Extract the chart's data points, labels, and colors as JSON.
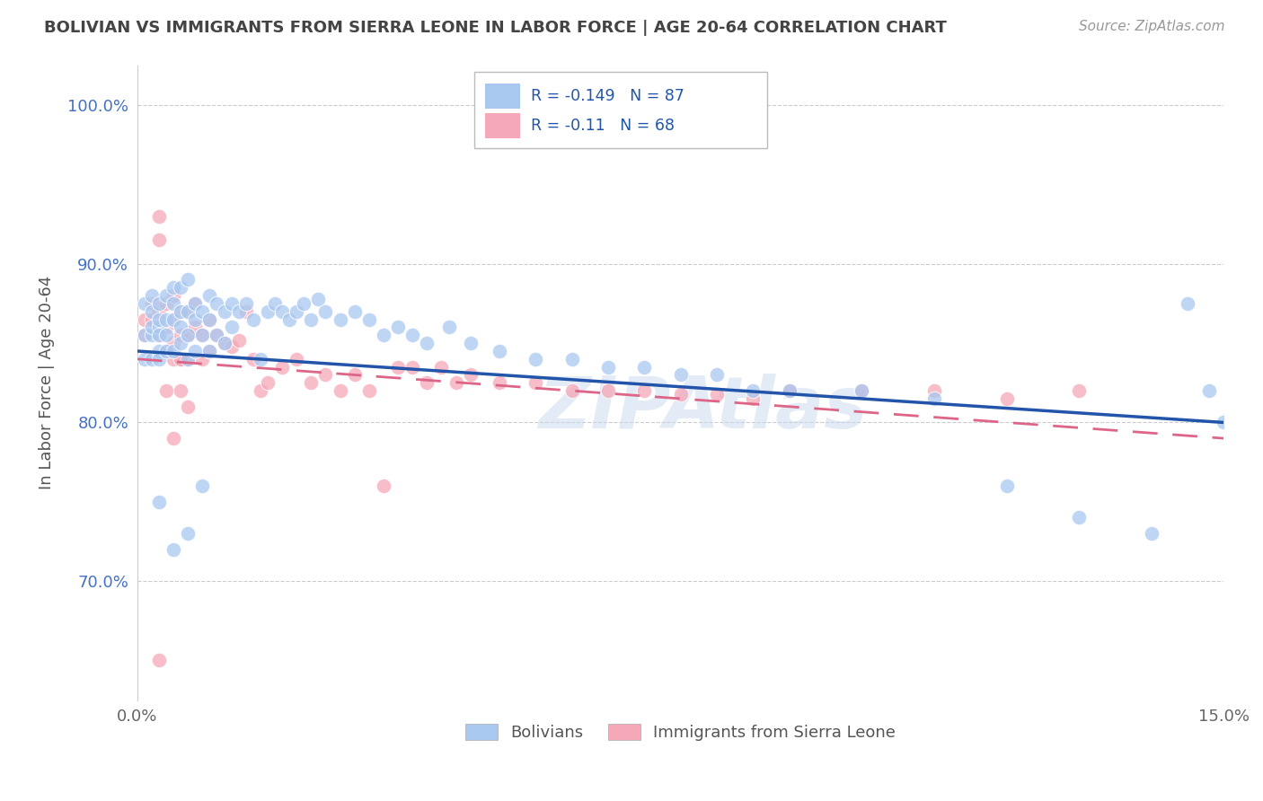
{
  "title": "BOLIVIAN VS IMMIGRANTS FROM SIERRA LEONE IN LABOR FORCE | AGE 20-64 CORRELATION CHART",
  "source": "Source: ZipAtlas.com",
  "ylabel": "In Labor Force | Age 20-64",
  "xlim": [
    0.0,
    0.15
  ],
  "ylim": [
    0.625,
    1.025
  ],
  "yticks": [
    0.7,
    0.8,
    0.9,
    1.0
  ],
  "yticklabels": [
    "70.0%",
    "80.0%",
    "90.0%",
    "100.0%"
  ],
  "xtick_positions": [
    0.0,
    0.05,
    0.1,
    0.15
  ],
  "xtick_labels": [
    "0.0%",
    "",
    "",
    "15.0%"
  ],
  "blue_color": "#a8c8f0",
  "pink_color": "#f5a8b8",
  "blue_line_color": "#2255aa",
  "pink_line_color": "#dd6688",
  "R_blue": -0.149,
  "N_blue": 87,
  "R_pink": -0.11,
  "N_pink": 68,
  "legend_blue": "Bolivians",
  "legend_pink": "Immigrants from Sierra Leone",
  "watermark": "ZIPAtlas",
  "blue_trend_x0": 0.0,
  "blue_trend_y0": 0.845,
  "blue_trend_x1": 0.15,
  "blue_trend_y1": 0.8,
  "pink_trend_x0": 0.0,
  "pink_trend_y0": 0.84,
  "pink_trend_x1": 0.15,
  "pink_trend_y1": 0.79,
  "blue_x": [
    0.001,
    0.001,
    0.001,
    0.002,
    0.002,
    0.002,
    0.002,
    0.002,
    0.003,
    0.003,
    0.003,
    0.003,
    0.003,
    0.003,
    0.004,
    0.004,
    0.004,
    0.004,
    0.005,
    0.005,
    0.005,
    0.005,
    0.006,
    0.006,
    0.006,
    0.006,
    0.007,
    0.007,
    0.007,
    0.007,
    0.008,
    0.008,
    0.008,
    0.009,
    0.009,
    0.01,
    0.01,
    0.01,
    0.011,
    0.011,
    0.012,
    0.012,
    0.013,
    0.013,
    0.014,
    0.015,
    0.016,
    0.017,
    0.018,
    0.019,
    0.02,
    0.021,
    0.022,
    0.023,
    0.024,
    0.025,
    0.026,
    0.028,
    0.03,
    0.032,
    0.034,
    0.036,
    0.038,
    0.04,
    0.043,
    0.046,
    0.05,
    0.055,
    0.06,
    0.065,
    0.07,
    0.075,
    0.08,
    0.085,
    0.09,
    0.1,
    0.11,
    0.12,
    0.13,
    0.14,
    0.145,
    0.148,
    0.15,
    0.003,
    0.005,
    0.007,
    0.009
  ],
  "blue_y": [
    0.855,
    0.84,
    0.875,
    0.87,
    0.855,
    0.84,
    0.86,
    0.88,
    0.86,
    0.845,
    0.875,
    0.855,
    0.84,
    0.865,
    0.88,
    0.865,
    0.845,
    0.855,
    0.885,
    0.865,
    0.845,
    0.875,
    0.87,
    0.85,
    0.885,
    0.86,
    0.89,
    0.87,
    0.855,
    0.84,
    0.865,
    0.875,
    0.845,
    0.87,
    0.855,
    0.88,
    0.865,
    0.845,
    0.875,
    0.855,
    0.87,
    0.85,
    0.875,
    0.86,
    0.87,
    0.875,
    0.865,
    0.84,
    0.87,
    0.875,
    0.87,
    0.865,
    0.87,
    0.875,
    0.865,
    0.878,
    0.87,
    0.865,
    0.87,
    0.865,
    0.855,
    0.86,
    0.855,
    0.85,
    0.86,
    0.85,
    0.845,
    0.84,
    0.84,
    0.835,
    0.835,
    0.83,
    0.83,
    0.82,
    0.82,
    0.82,
    0.815,
    0.76,
    0.74,
    0.73,
    0.875,
    0.82,
    0.8,
    0.75,
    0.72,
    0.73,
    0.76
  ],
  "pink_x": [
    0.001,
    0.001,
    0.002,
    0.002,
    0.003,
    0.003,
    0.003,
    0.003,
    0.004,
    0.004,
    0.004,
    0.005,
    0.005,
    0.005,
    0.006,
    0.006,
    0.006,
    0.007,
    0.007,
    0.007,
    0.008,
    0.008,
    0.009,
    0.009,
    0.01,
    0.01,
    0.011,
    0.012,
    0.013,
    0.014,
    0.015,
    0.016,
    0.017,
    0.018,
    0.02,
    0.022,
    0.024,
    0.026,
    0.028,
    0.03,
    0.032,
    0.034,
    0.036,
    0.038,
    0.04,
    0.042,
    0.044,
    0.046,
    0.05,
    0.055,
    0.06,
    0.065,
    0.07,
    0.075,
    0.08,
    0.085,
    0.09,
    0.1,
    0.11,
    0.12,
    0.13,
    0.003,
    0.004,
    0.005,
    0.006,
    0.005,
    0.006,
    0.007
  ],
  "pink_y": [
    0.865,
    0.855,
    0.875,
    0.865,
    0.93,
    0.915,
    0.87,
    0.855,
    0.875,
    0.86,
    0.845,
    0.88,
    0.865,
    0.85,
    0.87,
    0.855,
    0.84,
    0.87,
    0.855,
    0.84,
    0.875,
    0.86,
    0.855,
    0.84,
    0.865,
    0.845,
    0.855,
    0.85,
    0.848,
    0.852,
    0.87,
    0.84,
    0.82,
    0.825,
    0.835,
    0.84,
    0.825,
    0.83,
    0.82,
    0.83,
    0.82,
    0.76,
    0.835,
    0.835,
    0.825,
    0.835,
    0.825,
    0.83,
    0.825,
    0.825,
    0.82,
    0.82,
    0.82,
    0.818,
    0.818,
    0.815,
    0.82,
    0.82,
    0.82,
    0.815,
    0.82,
    0.65,
    0.82,
    0.84,
    0.84,
    0.79,
    0.82,
    0.81
  ]
}
